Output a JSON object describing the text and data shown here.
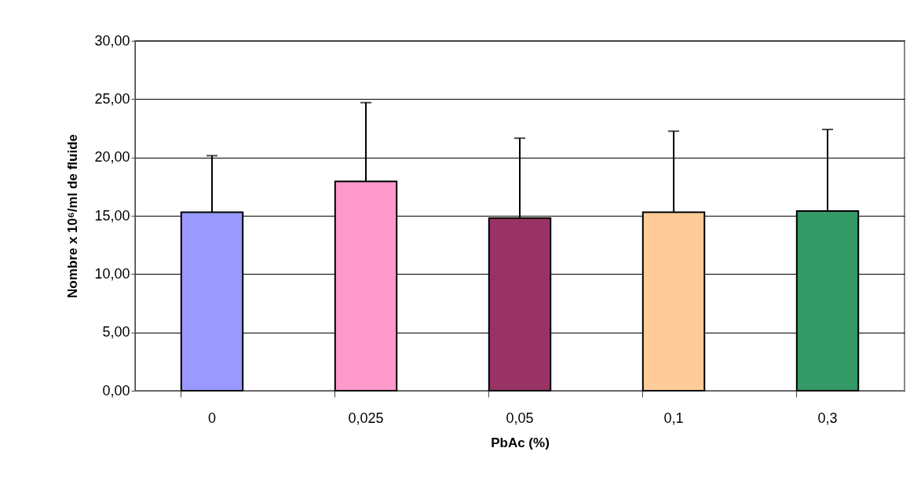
{
  "chart_data": {
    "type": "bar",
    "xlabel": "PbAc (%)",
    "ylabel": "Nombre x 10⁶/ml de fluide",
    "categories": [
      "0",
      "0,025",
      "0,05",
      "0,1",
      "0,3"
    ],
    "values": [
      15.3,
      17.95,
      14.8,
      15.3,
      15.4
    ],
    "colors": [
      "#9999ff",
      "#ff99cc",
      "#993366",
      "#ffcc99",
      "#339966"
    ],
    "errors": [
      [
        15.3,
        20.15
      ],
      [
        17.95,
        24.7
      ],
      [
        14.8,
        21.65
      ],
      [
        15.3,
        22.25
      ],
      [
        15.4,
        22.4
      ]
    ],
    "ylim": [
      0,
      30
    ],
    "yticks": [
      {
        "value": 0,
        "label": "0,00"
      },
      {
        "value": 5,
        "label": "5,00"
      },
      {
        "value": 10,
        "label": "10,00"
      },
      {
        "value": 15,
        "label": "15,00"
      },
      {
        "value": 20,
        "label": "20,00"
      },
      {
        "value": 25,
        "label": "25,00"
      },
      {
        "value": 30,
        "label": "30,00"
      }
    ],
    "grid": "y"
  }
}
